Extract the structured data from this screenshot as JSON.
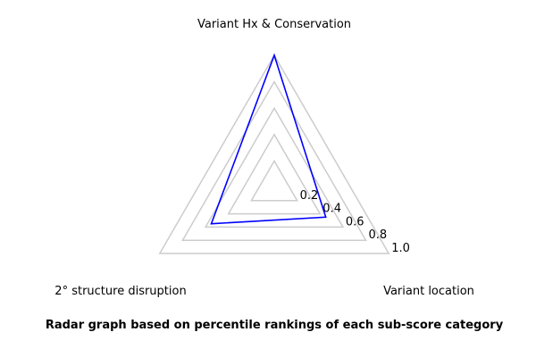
{
  "chart_data": {
    "type": "radar",
    "axes": [
      "Variant Hx & Conservation",
      "Variant location",
      "2° structure disruption"
    ],
    "rings": [
      0.2,
      0.4,
      0.6,
      0.8,
      1.0
    ],
    "ring_labels": [
      "0.2",
      "0.4",
      "0.6",
      "0.8",
      "1.0"
    ],
    "range": [
      0,
      1.0
    ],
    "series": [
      {
        "values": [
          1.0,
          0.45,
          0.55
        ],
        "color": "#0000ff"
      }
    ],
    "grid_color": "#cccccc",
    "caption": "Radar graph based on percentile rankings of each sub-score category"
  }
}
